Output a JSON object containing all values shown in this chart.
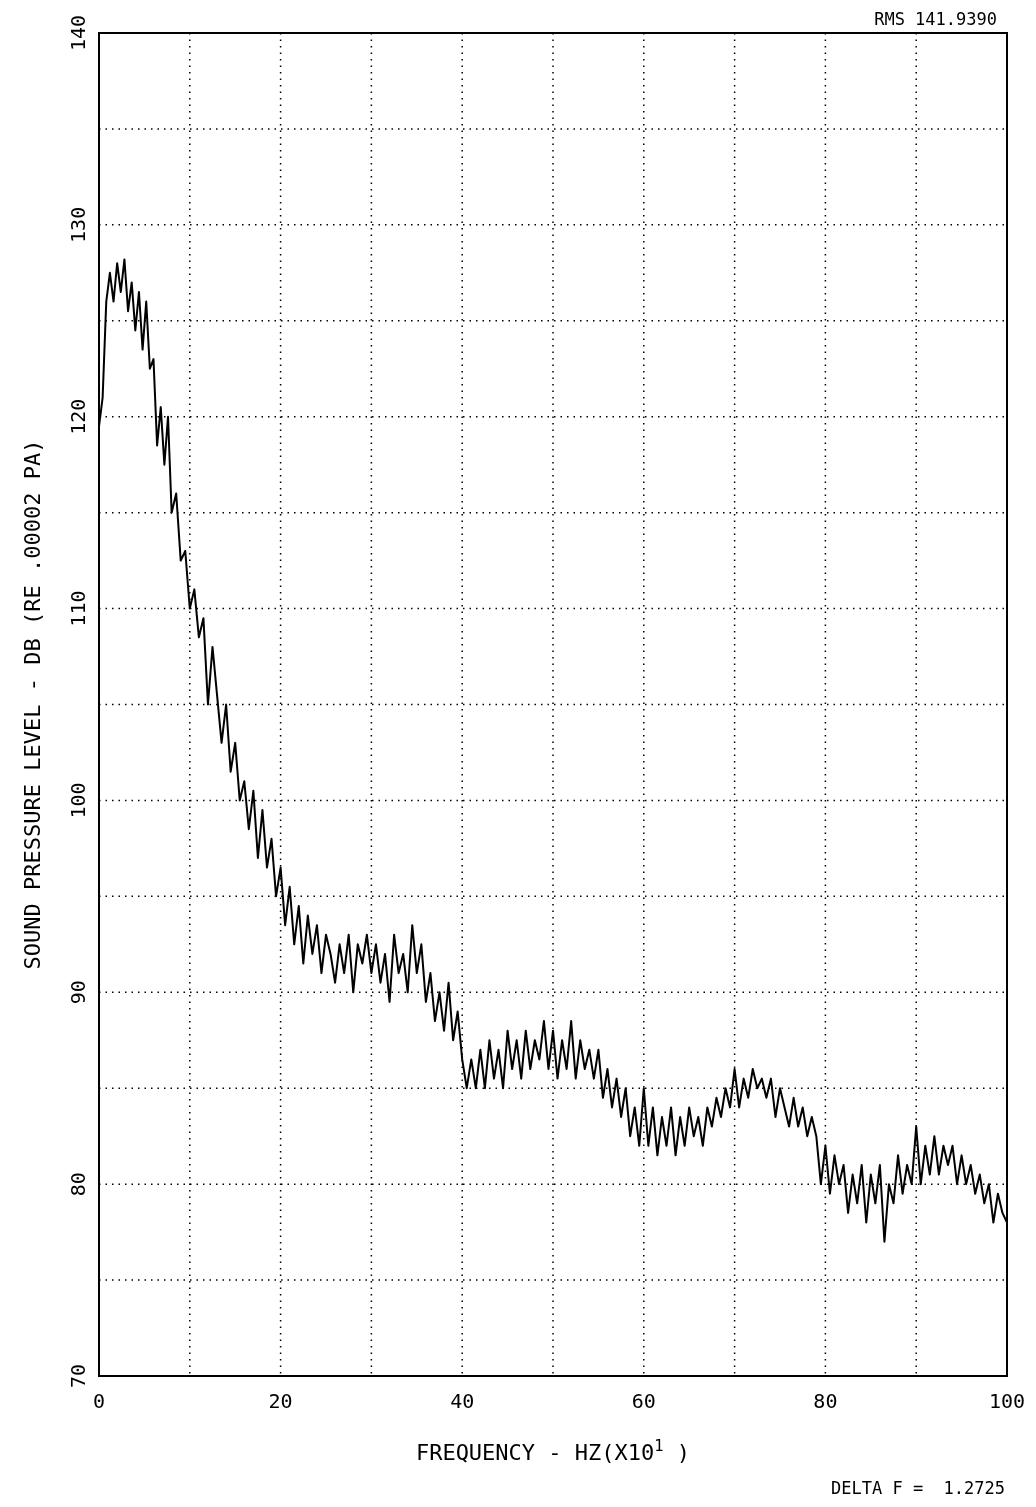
{
  "chart_data": {
    "type": "line",
    "xlabel": "FREQUENCY - HZ(X10$^{1}$ )",
    "ylabel": "SOUND PRESSURE LEVEL - DB (RE .00002 PA)",
    "annotations": [
      "RMS 141.9390",
      "DELTA F =  1.2725"
    ],
    "xlim": [
      0,
      100
    ],
    "ylim": [
      70,
      140
    ],
    "xticks": [
      0,
      {
        "value": 10,
        "label": null
      },
      20,
      {
        "value": 30,
        "label": null
      },
      40,
      {
        "value": 50,
        "label": null
      },
      60,
      {
        "value": 70,
        "label": null
      },
      80,
      {
        "value": 90,
        "label": null
      },
      100
    ],
    "yticks": [
      70,
      {
        "value": 75,
        "label": null
      },
      80,
      {
        "value": 85,
        "label": null
      },
      90,
      {
        "value": 95,
        "label": null
      },
      100,
      {
        "value": 105,
        "label": null
      },
      110,
      {
        "value": 115,
        "label": null
      },
      120,
      {
        "value": 125,
        "label": null
      },
      130,
      {
        "value": 135,
        "label": null
      },
      140
    ],
    "grid": true,
    "marker": "none",
    "line_style": "solid",
    "series": [
      {
        "color": "#000000",
        "x": [
          0,
          0.4,
          0.8,
          1.2,
          1.6,
          2.0,
          2.4,
          2.8,
          3.2,
          3.6,
          4.0,
          4.4,
          4.8,
          5.2,
          5.6,
          6.0,
          6.4,
          6.8,
          7.2,
          7.6,
          8.0,
          8.5,
          9.0,
          9.5,
          10.0,
          10.5,
          11.0,
          11.5,
          12.0,
          12.5,
          13.0,
          13.5,
          14.0,
          14.5,
          15.0,
          15.5,
          16.0,
          16.5,
          17.0,
          17.5,
          18.0,
          18.5,
          19.0,
          19.5,
          20.0,
          20.5,
          21.0,
          21.5,
          22.0,
          22.5,
          23.0,
          23.5,
          24.0,
          24.5,
          25.0,
          25.5,
          26.0,
          26.5,
          27.0,
          27.5,
          28.0,
          28.5,
          29.0,
          29.5,
          30.0,
          30.5,
          31.0,
          31.5,
          32.0,
          32.5,
          33.0,
          33.5,
          34.0,
          34.5,
          35.0,
          35.5,
          36.0,
          36.5,
          37.0,
          37.5,
          38.0,
          38.5,
          39.0,
          39.5,
          40.0,
          40.5,
          41.0,
          41.5,
          42.0,
          42.5,
          43.0,
          43.5,
          44.0,
          44.5,
          45.0,
          45.5,
          46.0,
          46.5,
          47.0,
          47.5,
          48.0,
          48.5,
          49.0,
          49.5,
          50.0,
          50.5,
          51.0,
          51.5,
          52.0,
          52.5,
          53.0,
          53.5,
          54.0,
          54.5,
          55.0,
          55.5,
          56.0,
          56.5,
          57.0,
          57.5,
          58.0,
          58.5,
          59.0,
          59.5,
          60.0,
          60.5,
          61.0,
          61.5,
          62.0,
          62.5,
          63.0,
          63.5,
          64.0,
          64.5,
          65.0,
          65.5,
          66.0,
          66.5,
          67.0,
          67.5,
          68.0,
          68.5,
          69.0,
          69.5,
          70.0,
          70.5,
          71.0,
          71.5,
          72.0,
          72.5,
          73.0,
          73.5,
          74.0,
          74.5,
          75.0,
          75.5,
          76.0,
          76.5,
          77.0,
          77.5,
          78.0,
          78.5,
          79.0,
          79.5,
          80.0,
          80.5,
          81.0,
          81.5,
          82.0,
          82.5,
          83.0,
          83.5,
          84.0,
          84.5,
          85.0,
          85.5,
          86.0,
          86.5,
          87.0,
          87.5,
          88.0,
          88.5,
          89.0,
          89.5,
          90.0,
          90.5,
          91.0,
          91.5,
          92.0,
          92.5,
          93.0,
          93.5,
          94.0,
          94.5,
          95.0,
          95.5,
          96.0,
          96.5,
          97.0,
          97.5,
          98.0,
          98.5,
          99.0,
          99.5,
          100
        ],
        "values": [
          119.5,
          121,
          126,
          127.5,
          126,
          128,
          126.5,
          128.2,
          125.5,
          127,
          124.5,
          126.5,
          123.5,
          126,
          122.5,
          123,
          118.5,
          120.5,
          117.5,
          120,
          115,
          116,
          112.5,
          113,
          110,
          111,
          108.5,
          109.5,
          105,
          108,
          105.5,
          103,
          105,
          101.5,
          103,
          100,
          101,
          98.5,
          100.5,
          97,
          99.5,
          96.5,
          98,
          95,
          96.5,
          93.5,
          95.5,
          92.5,
          94.5,
          91.5,
          94,
          92,
          93.5,
          91,
          93,
          92,
          90.5,
          92.5,
          91,
          93,
          90,
          92.5,
          91.5,
          93,
          91,
          92.5,
          90.5,
          92,
          89.5,
          93,
          91,
          92,
          90,
          93.5,
          91,
          92.5,
          89.5,
          91,
          88.5,
          90,
          88,
          90.5,
          87.5,
          89,
          86.5,
          85,
          86.5,
          85,
          87,
          85,
          87.5,
          85.5,
          87,
          85,
          88,
          86,
          87.5,
          85.5,
          88,
          86,
          87.5,
          86.5,
          88.5,
          86,
          88,
          85.5,
          87.5,
          86,
          88.5,
          85.5,
          87.5,
          86,
          87,
          85.5,
          87,
          84.5,
          86,
          84,
          85.5,
          83.5,
          85,
          82.5,
          84,
          82,
          85,
          82,
          84,
          81.5,
          83.5,
          82,
          84,
          81.5,
          83.5,
          82,
          84,
          82.5,
          83.5,
          82,
          84,
          83,
          84.5,
          83.5,
          85,
          84,
          86,
          84,
          85.5,
          84.5,
          86,
          85,
          85.5,
          84.5,
          85.5,
          83.5,
          85,
          84,
          83,
          84.5,
          83,
          84,
          82.5,
          83.5,
          82.5,
          80,
          82,
          79.5,
          81.5,
          80,
          81,
          78.5,
          80.5,
          79,
          81,
          78,
          80.5,
          79,
          81,
          77,
          80,
          79,
          81.5,
          79.5,
          81,
          80,
          83,
          80,
          82,
          80.5,
          82.5,
          80.5,
          82,
          81,
          82,
          80,
          81.5,
          80,
          81,
          79.5,
          80.5,
          79,
          80,
          78,
          79.5,
          78.5,
          78
        ]
      }
    ]
  }
}
